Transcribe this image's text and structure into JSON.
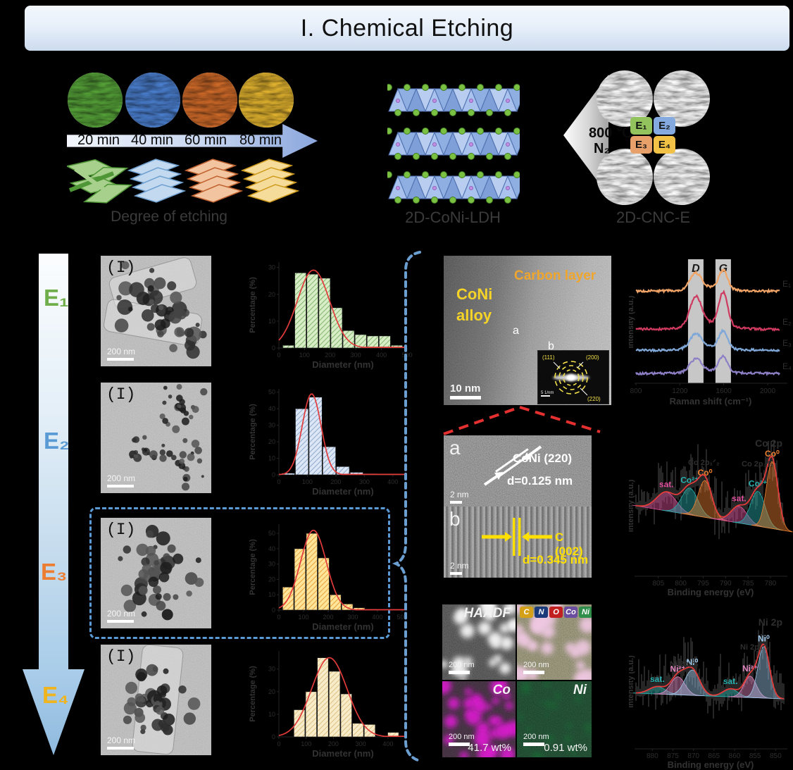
{
  "banner": {
    "title": "I. Chemical Etching"
  },
  "timeline": {
    "steps": [
      "20 min",
      "40 min",
      "60 min",
      "80 min"
    ],
    "caption": "Degree of etching",
    "step_colors": [
      "#55a238",
      "#4a7fd0",
      "#d06a28",
      "#e3b42e"
    ]
  },
  "ldh": {
    "label": "2D-CoNi-LDH"
  },
  "pyrolysis": {
    "line1": "800 ℃",
    "line2": "N₂"
  },
  "cnc": {
    "label": "2D-CNC-E",
    "badges": [
      {
        "text": "E₁",
        "color": "#93c35c"
      },
      {
        "text": "E₂",
        "color": "#84aadf"
      },
      {
        "text": "E₃",
        "color": "#e8a06a"
      },
      {
        "text": "E₄",
        "color": "#f2c246"
      }
    ]
  },
  "etch_labels": [
    {
      "text": "E₁",
      "color": "#6fae4a"
    },
    {
      "text": "E₂",
      "color": "#5b9bd5"
    },
    {
      "text": "E₃",
      "color": "#ed7d31"
    },
    {
      "text": "E₄",
      "color": "#f0b41e"
    }
  ],
  "tem": {
    "rows": [
      {
        "marker": "(I)",
        "scalebar": "200 nm"
      },
      {
        "marker": "(I)",
        "scalebar": "200 nm"
      },
      {
        "marker": "(I)",
        "scalebar": "200 nm"
      },
      {
        "marker": "(I)",
        "scalebar": "200 nm"
      }
    ]
  },
  "hrtem": {
    "main": {
      "alloy_label": "CoNi\nalloy",
      "alloy_line1": "CoNi",
      "alloy_line2": "alloy",
      "carbon_label": "Carbon layer",
      "marker_a": "a",
      "marker_b": "b",
      "scalebar": "10 nm",
      "saed": {
        "rings": [
          "(111)",
          "(200)",
          "(220)"
        ],
        "scalebar": "5 1/nm"
      }
    },
    "a": {
      "marker": "a",
      "phase": "CoNi (220)",
      "spacing": "d=0.125 nm",
      "scalebar": "2 nm"
    },
    "b": {
      "marker": "b",
      "phase": "C (002)",
      "spacing": "d=0.345 nm",
      "scalebar": "2 nm"
    }
  },
  "eds": {
    "haadf": {
      "title": "HAADF",
      "scalebar": "200 nm"
    },
    "overlay": {
      "scalebar": "200 nm",
      "elements": [
        {
          "symbol": "C",
          "color": "#d4a017"
        },
        {
          "symbol": "N",
          "color": "#1b3a7a"
        },
        {
          "symbol": "O",
          "color": "#c22020"
        },
        {
          "symbol": "Co",
          "color": "#6a4d9e"
        },
        {
          "symbol": "Ni",
          "color": "#2f8f4a"
        }
      ]
    },
    "co": {
      "title": "Co",
      "scalebar": "200 nm",
      "wt": "41.7 wt%"
    },
    "ni": {
      "title": "Ni",
      "scalebar": "200 nm",
      "wt": "0.91 wt%"
    }
  },
  "chart_data": [
    {
      "id": "hist_e1",
      "type": "bar",
      "xlabel": "Diameter (nm)",
      "ylabel": "Percentage (%)",
      "xlim": [
        0,
        500
      ],
      "ylim": [
        0,
        32
      ],
      "xticks": [
        0,
        100,
        200,
        300,
        400,
        500
      ],
      "yticks": [
        0,
        10,
        20,
        30
      ],
      "bins_start": 15,
      "bin_width": 47,
      "values": [
        1,
        28,
        27.5,
        26,
        15,
        6.5,
        5,
        4.5,
        4.5,
        1
      ],
      "fit": {
        "mu": 135,
        "sigma": 63,
        "amp": 29
      },
      "bar_fill": "#d9ecc8",
      "hatch": "#7fb86a"
    },
    {
      "id": "hist_e2",
      "type": "bar",
      "xlabel": "Diameter (nm)",
      "ylabel": "Percentage (%)",
      "xlim": [
        0,
        450
      ],
      "ylim": [
        0,
        52
      ],
      "xticks": [
        0,
        100,
        200,
        300,
        400
      ],
      "yticks": [
        0,
        10,
        20,
        30,
        40,
        50
      ],
      "bins_start": 10,
      "bin_width": 48,
      "values": [
        1,
        40,
        47,
        17,
        5,
        1.5,
        0.7
      ],
      "fit": {
        "mu": 115,
        "sigma": 33,
        "amp": 49
      },
      "bar_fill": "#dce6f4",
      "hatch": "#8fa9cf"
    },
    {
      "id": "hist_e3",
      "type": "bar",
      "xlabel": "Diameter (nm)",
      "ylabel": "Percentage (%)",
      "xlim": [
        0,
        520
      ],
      "ylim": [
        0,
        56
      ],
      "xticks": [
        0,
        100,
        200,
        300,
        400,
        500
      ],
      "yticks": [
        0,
        10,
        20,
        30,
        40,
        50
      ],
      "bins_start": 15,
      "bin_width": 48,
      "values": [
        15,
        40,
        50,
        34,
        10,
        4,
        1.5,
        0.6
      ],
      "fit": {
        "mu": 140,
        "sigma": 52,
        "amp": 52
      },
      "bar_fill": "#ffe49a",
      "hatch": "#e8a33c"
    },
    {
      "id": "hist_e4",
      "type": "bar",
      "xlabel": "Diameter (nm)",
      "ylabel": "Percentage (%)",
      "xlim": [
        0,
        470
      ],
      "ylim": [
        0,
        38
      ],
      "xticks": [
        0,
        100,
        200,
        300,
        400
      ],
      "yticks": [
        0,
        10,
        20,
        30
      ],
      "bins_start": 55,
      "bin_width": 43,
      "values": [
        12,
        20,
        35,
        29,
        19,
        6,
        5.5,
        0,
        2
      ],
      "fit": {
        "mu": 185,
        "sigma": 65,
        "amp": 35
      },
      "bar_fill": "#f7ecca",
      "hatch": "#dfc080"
    },
    {
      "id": "raman",
      "type": "line",
      "xlabel": "Raman shift (cm⁻¹)",
      "ylabel": "Intensity (a.u.)",
      "xlim": [
        800,
        2000
      ],
      "xticks": [
        800,
        1200,
        1600,
        2000
      ],
      "bands": [
        {
          "label": "D",
          "center": 1345
        },
        {
          "label": "G",
          "center": 1595
        }
      ],
      "series": [
        {
          "name": "E₁",
          "color": "#f2a566",
          "offset": 3.58,
          "d_amp": 0.61,
          "g_amp": 0.72
        },
        {
          "name": "E₂",
          "color": "#cf3a60",
          "offset": 2.08,
          "d_amp": 1.11,
          "g_amp": 1.28
        },
        {
          "name": "E₃",
          "color": "#7fa8d8",
          "offset": 1.25,
          "d_amp": 0.56,
          "g_amp": 0.67
        },
        {
          "name": "E₄",
          "color": "#8d7fc6",
          "offset": 0.33,
          "d_amp": 0.5,
          "g_amp": 0.61
        }
      ]
    },
    {
      "id": "xps_co",
      "type": "area",
      "title": "Co 2p",
      "xlabel": "Binding energy (eV)",
      "ylabel": "Intensity (a.u.)",
      "xlim": [
        810,
        777
      ],
      "xticks": [
        805,
        800,
        795,
        790,
        785,
        780
      ],
      "region_labels": [
        "Co 2p₁ᐟ₂",
        "Co 2p₃ᐟ₂"
      ],
      "peaks": [
        {
          "label": "sat.",
          "color": "#e2509e",
          "center": 803.2,
          "amp": 0.28,
          "sigma": 2.2
        },
        {
          "label": "Co²⁺",
          "color": "#27b0ae",
          "center": 798.0,
          "amp": 0.4,
          "sigma": 1.8
        },
        {
          "label": "Co⁰",
          "color": "#f08030",
          "center": 794.6,
          "amp": 0.55,
          "sigma": 1.5
        },
        {
          "label": "sat.",
          "color": "#e2509e",
          "center": 787.0,
          "amp": 0.25,
          "sigma": 1.8
        },
        {
          "label": "Co²⁺",
          "color": "#27b0ae",
          "center": 782.8,
          "amp": 0.52,
          "sigma": 1.6
        },
        {
          "label": "Co⁰",
          "color": "#f08030",
          "center": 779.6,
          "amp": 1.0,
          "sigma": 1.3
        }
      ]
    },
    {
      "id": "xps_ni",
      "type": "area",
      "title": "Ni 2p",
      "xlabel": "Binding energy (eV)",
      "ylabel": "Intensity (a.u.)",
      "xlim": [
        884,
        848
      ],
      "xticks": [
        880,
        875,
        870,
        865,
        860,
        855,
        850
      ],
      "region_labels": [
        "Ni 2p₁ᐟ₂",
        "Ni 2p₃ᐟ₂"
      ],
      "peaks": [
        {
          "label": "sat.",
          "color": "#27b0ae",
          "center": 878.8,
          "amp": 0.13,
          "sigma": 2.0
        },
        {
          "label": "Ni²⁺",
          "color": "#e286c0",
          "center": 873.8,
          "amp": 0.32,
          "sigma": 1.7
        },
        {
          "label": "Ni⁰",
          "color": "#9ec7e8",
          "center": 870.3,
          "amp": 0.45,
          "sigma": 1.8
        },
        {
          "label": "sat.",
          "color": "#27b0ae",
          "center": 861.0,
          "amp": 0.14,
          "sigma": 1.8
        },
        {
          "label": "Ni²⁺",
          "color": "#e286c0",
          "center": 856.2,
          "amp": 0.38,
          "sigma": 1.5
        },
        {
          "label": "Ni⁰",
          "color": "#9ec7e8",
          "center": 852.9,
          "amp": 0.92,
          "sigma": 1.4
        }
      ]
    }
  ]
}
